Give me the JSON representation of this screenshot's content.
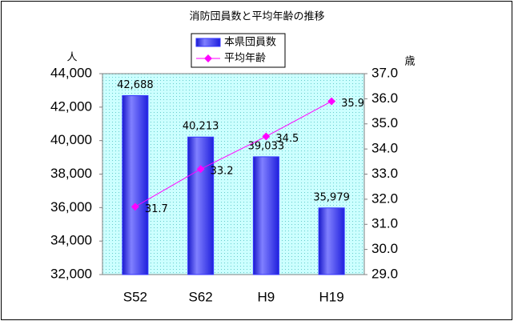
{
  "chart_data": {
    "type": "combo",
    "title": "消防団員数と平均年齢の推移",
    "categories": [
      "S52",
      "S62",
      "H9",
      "H19"
    ],
    "series": [
      {
        "name": "本県団員数",
        "type": "bar",
        "color": "#3333ff",
        "values": [
          42688,
          40213,
          39033,
          35979
        ],
        "value_labels": [
          "42,688",
          "40,213",
          "39,033",
          "35,979"
        ]
      },
      {
        "name": "平均年齢",
        "type": "line",
        "axis": "y2",
        "color": "#ff00ff",
        "values": [
          31.7,
          33.2,
          34.5,
          35.9
        ]
      }
    ],
    "ylabel": "人",
    "y2label": "歳",
    "ylim": [
      32000,
      44000
    ],
    "yticks": [
      {
        "value": 32000,
        "label": "32,000"
      },
      {
        "value": 34000,
        "label": "34,000"
      },
      {
        "value": 36000,
        "label": "36,000"
      },
      {
        "value": 38000,
        "label": "38,000"
      },
      {
        "value": 40000,
        "label": "40,000"
      },
      {
        "value": 42000,
        "label": "42,000"
      },
      {
        "value": 44000,
        "label": "44,000"
      }
    ],
    "y2lim": [
      29,
      37
    ],
    "y2ticks": [
      {
        "value": 29,
        "label": "29.0"
      },
      {
        "value": 30,
        "label": "30.0"
      },
      {
        "value": 31,
        "label": "31.0"
      },
      {
        "value": 32,
        "label": "32.0"
      },
      {
        "value": 33,
        "label": "33.0"
      },
      {
        "value": 34,
        "label": "34.0"
      },
      {
        "value": 35,
        "label": "35.0"
      },
      {
        "value": 36,
        "label": "36.0"
      },
      {
        "value": 37,
        "label": "37.0"
      }
    ],
    "legend": "top-center"
  }
}
